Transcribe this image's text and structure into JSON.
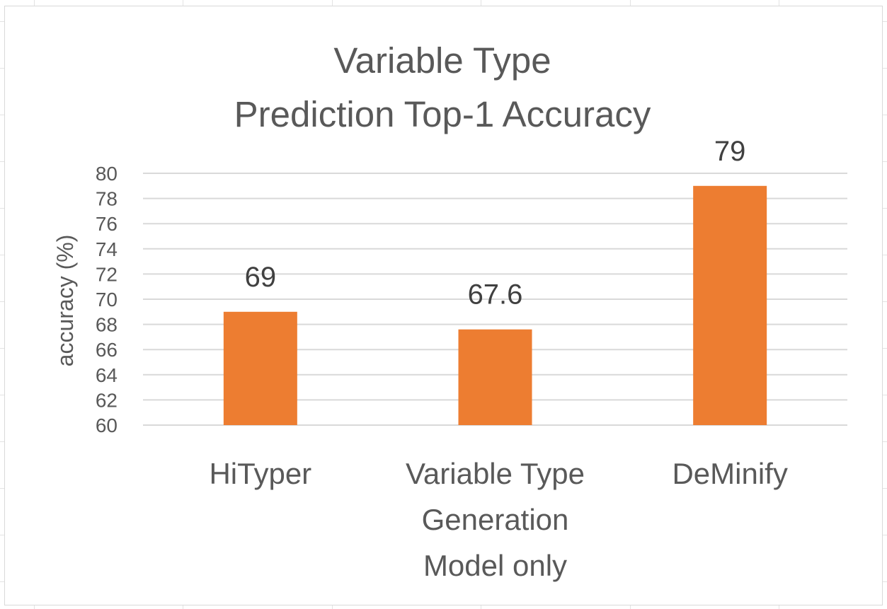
{
  "chart_data": {
    "type": "bar",
    "title": [
      "Variable Type",
      "Prediction Top-1 Accuracy"
    ],
    "xlabel": "",
    "ylabel": "accuracy (%)",
    "categories": [
      [
        "HiTyper"
      ],
      [
        "Variable Type",
        "Generation",
        "Model only"
      ],
      [
        "DeMinify"
      ]
    ],
    "values": [
      69,
      67.6,
      79
    ],
    "data_labels": [
      "69",
      "67.6",
      "79"
    ],
    "ylim": [
      60,
      80
    ],
    "ytick_step": 2,
    "yticks": [
      "60",
      "62",
      "64",
      "66",
      "68",
      "70",
      "72",
      "74",
      "76",
      "78",
      "80"
    ],
    "grid": true,
    "legend": "none",
    "bar_color": "#ED7D31"
  }
}
